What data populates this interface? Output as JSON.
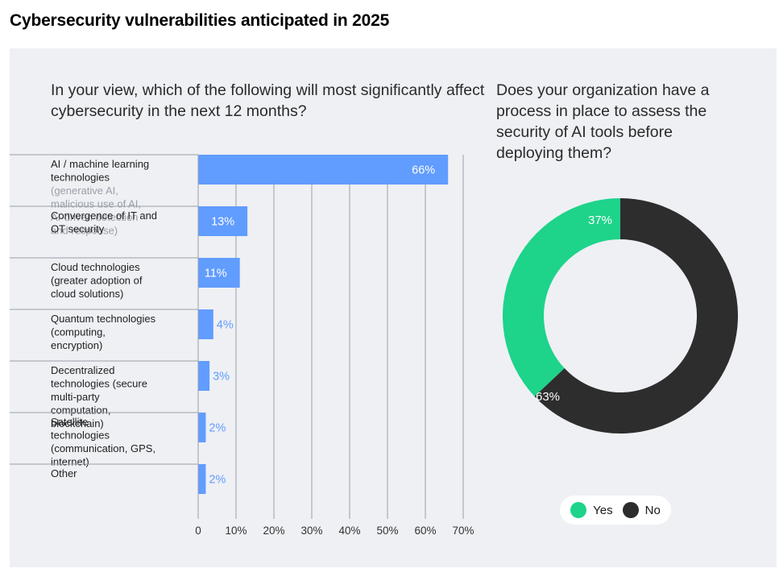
{
  "page_title": "Cybersecurity vulnerabilities anticipated in 2025",
  "colors": {
    "bar": "#619cff",
    "yes": "#1ed38a",
    "no": "#2d2d2d",
    "panel": "#eef0f4"
  },
  "chart_data": [
    {
      "type": "bar",
      "orientation": "horizontal",
      "title": "In your view, which of the following will most significantly affect cybersecurity in the next 12 months?",
      "categories": [
        {
          "main": "AI / machine learning technologies",
          "sub": "(generative AI, malicious use of AI, AI-driven detection and response)"
        },
        {
          "main": "Convergence of IT and OT security",
          "sub": ""
        },
        {
          "main": "Cloud technologies (greater adoption of cloud solutions)",
          "sub": ""
        },
        {
          "main": "Quantum technologies (computing, encryption)",
          "sub": ""
        },
        {
          "main": "Decentralized technologies (secure multi-party computation, blockchain)",
          "sub": ""
        },
        {
          "main": "Satellite technologies (communication, GPS, internet)",
          "sub": ""
        },
        {
          "main": "Other",
          "sub": ""
        }
      ],
      "values": [
        66,
        13,
        11,
        4,
        3,
        2,
        2
      ],
      "value_labels": [
        "66%",
        "13%",
        "11%",
        "4%",
        "3%",
        "2%",
        "2%"
      ],
      "xlim": [
        0,
        70
      ],
      "xticks": [
        "0",
        "10%",
        "20%",
        "30%",
        "40%",
        "50%",
        "60%",
        "70%"
      ],
      "grid": true
    },
    {
      "type": "pie",
      "donut": true,
      "title": "Does your organization have a process in place to assess the security of AI tools before deploying them?",
      "labels": [
        "Yes",
        "No"
      ],
      "values": [
        37,
        63
      ],
      "value_labels": [
        "37%",
        "63%"
      ],
      "legend": "bottom"
    }
  ]
}
